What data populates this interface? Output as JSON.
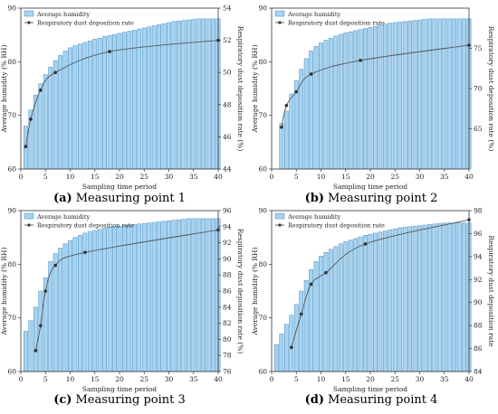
{
  "figure": {
    "bar_color": "#a9d3ef",
    "bar_edge": "#3d8fc7",
    "line_color": "#555555"
  },
  "chart_data": [
    {
      "type": "bar+line",
      "caption_label": "(a)",
      "caption_text": "Measuring point 1",
      "xlabel": "Sampling time period",
      "ylabel_left": "Average humidity (% RH)",
      "ylabel_right": "Respiratory dust deposition rate (%)",
      "xlim": [
        0,
        40
      ],
      "xticks": [
        0,
        5,
        10,
        15,
        20,
        25,
        30,
        35,
        40
      ],
      "ylim_left": [
        60,
        90
      ],
      "yticks_left": [
        60,
        70,
        80,
        90
      ],
      "ylim_right": [
        44,
        54
      ],
      "yticks_right": [
        44,
        46,
        48,
        50,
        52,
        54
      ],
      "legend": [
        "Average humidity",
        "Respiratory dust deposition rate"
      ],
      "x": [
        1,
        2,
        3,
        4,
        5,
        6,
        7,
        8,
        9,
        10,
        11,
        12,
        13,
        14,
        15,
        16,
        17,
        18,
        19,
        20,
        21,
        22,
        23,
        24,
        25,
        26,
        27,
        28,
        29,
        30,
        31,
        32,
        33,
        34,
        35,
        36,
        37,
        38,
        39,
        40
      ],
      "humidity": [
        68.0,
        71.0,
        73.8,
        75.9,
        77.6,
        79.0,
        80.2,
        81.2,
        82.0,
        82.6,
        83.0,
        83.3,
        83.6,
        83.9,
        84.2,
        84.4,
        84.7,
        84.9,
        85.1,
        85.3,
        85.5,
        85.7,
        85.9,
        86.1,
        86.3,
        86.5,
        86.7,
        86.9,
        87.1,
        87.3,
        87.5,
        87.6,
        87.7,
        87.8,
        87.9,
        88.0,
        88.0,
        88.0,
        88.0,
        88.0
      ],
      "deposition_x": [
        1,
        2,
        4,
        7,
        18,
        40
      ],
      "deposition": [
        45.4,
        47.1,
        48.9,
        50.0,
        51.3,
        52.0
      ]
    },
    {
      "type": "bar+line",
      "caption_label": "(b)",
      "caption_text": "Measuring point 2",
      "xlabel": "Sampling time period",
      "ylabel_left": "Average humidity (% RH)",
      "ylabel_right": "Respiratory dust deposition rate (%)",
      "xlim": [
        0,
        40
      ],
      "xticks": [
        0,
        5,
        10,
        15,
        20,
        25,
        30,
        35,
        40
      ],
      "ylim_left": [
        60,
        90
      ],
      "yticks_left": [
        60,
        70,
        80,
        90
      ],
      "ylim_right": [
        60,
        80
      ],
      "yticks_right": [
        65,
        70,
        75
      ],
      "legend": [
        "Average humidity",
        "Respiratory dust deposition rate"
      ],
      "x": [
        2,
        3,
        4,
        5,
        6,
        7,
        8,
        9,
        10,
        11,
        12,
        13,
        14,
        15,
        16,
        17,
        18,
        19,
        20,
        21,
        22,
        23,
        24,
        25,
        26,
        27,
        28,
        29,
        30,
        31,
        32,
        33,
        34,
        35,
        36,
        37,
        38,
        39,
        40
      ],
      "humidity": [
        68.5,
        70.8,
        74.0,
        76.5,
        78.6,
        80.6,
        82.0,
        82.9,
        83.5,
        84.0,
        84.4,
        84.8,
        85.1,
        85.4,
        85.6,
        85.8,
        86.0,
        86.2,
        86.4,
        86.6,
        86.8,
        87.0,
        87.2,
        87.3,
        87.4,
        87.5,
        87.6,
        87.7,
        87.8,
        87.9,
        88.0,
        88.0,
        88.0,
        88.0,
        88.0,
        88.0,
        88.0,
        88.0,
        88.0
      ],
      "deposition_x": [
        2,
        3,
        5,
        8,
        18,
        40
      ],
      "deposition": [
        65.2,
        67.9,
        69.6,
        71.8,
        73.5,
        75.4
      ]
    },
    {
      "type": "bar+line",
      "caption_label": "(c)",
      "caption_text": "Measuring point 3",
      "xlabel": "Sampling time period",
      "ylabel_left": "Average humidity (% RH)",
      "ylabel_right": "Respiratory dust deposition rate (%)",
      "xlim": [
        0,
        40
      ],
      "xticks": [
        0,
        5,
        10,
        15,
        20,
        25,
        30,
        35,
        40
      ],
      "ylim_left": [
        60,
        90
      ],
      "yticks_left": [
        60,
        70,
        80,
        90
      ],
      "ylim_right": [
        76,
        96
      ],
      "yticks_right": [
        76,
        78,
        80,
        82,
        84,
        86,
        88,
        90,
        92,
        94,
        96
      ],
      "legend": [
        "Average humidity",
        "Respiratory dust deposition rate"
      ],
      "x": [
        1,
        2,
        3,
        4,
        5,
        6,
        7,
        8,
        9,
        10,
        11,
        12,
        13,
        14,
        15,
        16,
        17,
        18,
        19,
        20,
        21,
        22,
        23,
        24,
        25,
        26,
        27,
        28,
        29,
        30,
        31,
        32,
        33,
        34,
        35,
        36,
        37,
        38,
        39,
        40
      ],
      "humidity": [
        67.5,
        69.5,
        72.0,
        75.0,
        77.5,
        80.5,
        82.0,
        83.0,
        83.8,
        84.4,
        85.0,
        85.4,
        85.8,
        86.1,
        86.3,
        86.5,
        86.7,
        86.9,
        87.0,
        87.1,
        87.2,
        87.3,
        87.4,
        87.5,
        87.6,
        87.7,
        87.8,
        87.9,
        88.0,
        88.1,
        88.2,
        88.3,
        88.4,
        88.5,
        88.5,
        88.5,
        88.5,
        88.5,
        88.5,
        88.5
      ],
      "deposition_x": [
        3,
        4,
        5,
        7,
        13,
        40
      ],
      "deposition": [
        78.6,
        81.7,
        86.0,
        89.2,
        90.8,
        93.6
      ]
    },
    {
      "type": "bar+line",
      "caption_label": "(d)",
      "caption_text": "Measuring point 4",
      "xlabel": "Sampling time period",
      "ylabel_left": "Average humidity (% RH)",
      "ylabel_right": "Respiratory dust deposition rate",
      "xlim": [
        0,
        40
      ],
      "xticks": [
        0,
        5,
        10,
        15,
        20,
        25,
        30,
        35,
        40
      ],
      "ylim_left": [
        60,
        90
      ],
      "yticks_left": [
        60,
        70,
        80,
        90
      ],
      "ylim_right": [
        84,
        98
      ],
      "yticks_right": [
        84,
        86,
        88,
        90,
        92,
        94,
        96,
        98
      ],
      "legend": [
        "Average humidity",
        "Respiratory dust deposition rate"
      ],
      "x": [
        1,
        2,
        3,
        4,
        5,
        6,
        7,
        8,
        9,
        10,
        11,
        12,
        13,
        14,
        15,
        16,
        17,
        18,
        19,
        20,
        21,
        22,
        23,
        24,
        25,
        26,
        27,
        28,
        29,
        30,
        31,
        32,
        33,
        34,
        35,
        36,
        37,
        38,
        39,
        40
      ],
      "humidity": [
        65.0,
        67.0,
        68.8,
        70.5,
        72.5,
        75.0,
        77.0,
        79.0,
        80.5,
        81.5,
        82.2,
        82.8,
        83.3,
        83.8,
        84.2,
        84.5,
        84.8,
        85.1,
        85.4,
        85.6,
        85.8,
        86.0,
        86.2,
        86.4,
        86.6,
        86.8,
        86.9,
        87.0,
        87.1,
        87.2,
        87.3,
        87.4,
        87.5,
        87.6,
        87.7,
        87.7,
        87.7,
        87.7,
        87.7,
        87.7
      ],
      "deposition_x": [
        4,
        6,
        8,
        11,
        19,
        40
      ],
      "deposition": [
        86.1,
        89.0,
        91.6,
        92.6,
        95.1,
        97.2
      ]
    }
  ]
}
